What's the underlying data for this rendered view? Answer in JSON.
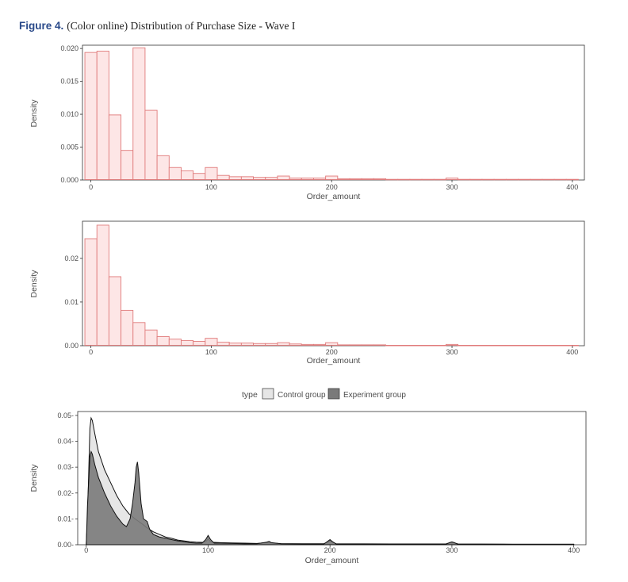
{
  "caption": {
    "label": "Figure 4.",
    "text": "(Color online) Distribution of Purchase Size - Wave I"
  },
  "chart_data": [
    {
      "type": "histogram",
      "xlabel": "Order_amount",
      "ylabel": "Density",
      "xlim": [
        -7,
        410
      ],
      "ylim": [
        0,
        0.0205
      ],
      "x_ticks": [
        0,
        100,
        200,
        300,
        400
      ],
      "y_ticks": [
        0.0,
        0.005,
        0.01,
        0.015,
        0.02
      ],
      "y_tick_labels": [
        "0.000",
        "0.005",
        "0.010",
        "0.015",
        "0.020"
      ],
      "bin_width": 10,
      "bin_start": -5,
      "values": [
        0.0194,
        0.0196,
        0.0099,
        0.0045,
        0.0201,
        0.0106,
        0.0037,
        0.0019,
        0.0014,
        0.001,
        0.0019,
        0.0007,
        0.0005,
        0.0005,
        0.0004,
        0.0004,
        0.0006,
        0.0003,
        0.0003,
        0.0003,
        0.0006,
        0.0002,
        0.0002,
        0.0002,
        0.0002,
        0.0001,
        0.0001,
        0.0001,
        0.0001,
        0.0001,
        0.0003,
        0.0001,
        0.0001,
        0.0001,
        0.0001,
        0.0001,
        0.0001,
        0.0001,
        0.0001,
        0.0001,
        0.0001
      ],
      "fill": "#fde6e6",
      "stroke": "#e07b7b",
      "grid": false
    },
    {
      "type": "histogram",
      "xlabel": "Order_amount",
      "ylabel": "Density",
      "xlim": [
        -7,
        410
      ],
      "ylim": [
        0,
        0.0285
      ],
      "x_ticks": [
        0,
        100,
        200,
        300,
        400
      ],
      "y_ticks": [
        0.0,
        0.01,
        0.02
      ],
      "y_tick_labels": [
        "0.00",
        "0.01",
        "0.02"
      ],
      "bin_width": 10,
      "bin_start": -5,
      "values": [
        0.0245,
        0.0276,
        0.0158,
        0.0081,
        0.0053,
        0.0036,
        0.0021,
        0.0015,
        0.0012,
        0.001,
        0.0017,
        0.0008,
        0.0006,
        0.0006,
        0.0005,
        0.0005,
        0.0007,
        0.0004,
        0.0003,
        0.0003,
        0.0007,
        0.0002,
        0.0002,
        0.0002,
        0.0002,
        0.0001,
        0.0001,
        0.0001,
        0.0001,
        0.0001,
        0.0003,
        0.0001,
        0.0001,
        0.0001,
        0.0001,
        0.0001,
        0.0001,
        0.0001,
        0.0001,
        0.0001,
        0.0001
      ],
      "fill": "#fde6e6",
      "stroke": "#e07b7b",
      "grid": false
    },
    {
      "type": "area",
      "xlabel": "Order_amount",
      "ylabel": "Density",
      "xlim": [
        -7,
        410
      ],
      "ylim": [
        0,
        0.0515
      ],
      "x_ticks": [
        0,
        100,
        200,
        300,
        400
      ],
      "y_ticks": [
        0.0,
        0.01,
        0.02,
        0.03,
        0.04,
        0.05
      ],
      "y_tick_labels": [
        "0.00-",
        "0.01-",
        "0.02-",
        "0.03-",
        "0.04-",
        "0.05-"
      ],
      "legend": {
        "title": "type",
        "position": "top"
      },
      "grid": false,
      "series": [
        {
          "name": "Control group",
          "fill": "#e6e6e6",
          "points": [
            [
              0,
              0.0
            ],
            [
              1,
              0.01
            ],
            [
              3,
              0.045
            ],
            [
              4,
              0.049
            ],
            [
              5,
              0.048
            ],
            [
              7,
              0.043
            ],
            [
              10,
              0.036
            ],
            [
              15,
              0.029
            ],
            [
              20,
              0.024
            ],
            [
              25,
              0.019
            ],
            [
              30,
              0.015
            ],
            [
              35,
              0.012
            ],
            [
              40,
              0.01
            ],
            [
              43,
              0.009
            ],
            [
              46,
              0.008
            ],
            [
              50,
              0.0065
            ],
            [
              55,
              0.005
            ],
            [
              60,
              0.004
            ],
            [
              65,
              0.003
            ],
            [
              70,
              0.0025
            ],
            [
              75,
              0.0018
            ],
            [
              80,
              0.0015
            ],
            [
              85,
              0.0012
            ],
            [
              90,
              0.001
            ],
            [
              95,
              0.0009
            ],
            [
              98,
              0.0012
            ],
            [
              100,
              0.0022
            ],
            [
              102,
              0.0012
            ],
            [
              105,
              0.0009
            ],
            [
              110,
              0.0008
            ],
            [
              120,
              0.0007
            ],
            [
              130,
              0.0006
            ],
            [
              140,
              0.0005
            ],
            [
              148,
              0.0008
            ],
            [
              150,
              0.001
            ],
            [
              152,
              0.0007
            ],
            [
              160,
              0.0004
            ],
            [
              180,
              0.0004
            ],
            [
              195,
              0.0004
            ],
            [
              198,
              0.001
            ],
            [
              200,
              0.0016
            ],
            [
              202,
              0.001
            ],
            [
              205,
              0.0004
            ],
            [
              250,
              0.0003
            ],
            [
              295,
              0.0003
            ],
            [
              298,
              0.0007
            ],
            [
              300,
              0.0009
            ],
            [
              302,
              0.0007
            ],
            [
              305,
              0.0003
            ],
            [
              350,
              0.0002
            ],
            [
              400,
              0.0002
            ]
          ]
        },
        {
          "name": "Experiment group",
          "fill": "#7a7a7a",
          "points": [
            [
              0,
              0.0
            ],
            [
              1,
              0.015
            ],
            [
              3,
              0.034
            ],
            [
              4,
              0.036
            ],
            [
              5,
              0.035
            ],
            [
              7,
              0.031
            ],
            [
              10,
              0.026
            ],
            [
              15,
              0.02
            ],
            [
              20,
              0.015
            ],
            [
              25,
              0.011
            ],
            [
              30,
              0.008
            ],
            [
              33,
              0.007
            ],
            [
              36,
              0.01
            ],
            [
              38,
              0.016
            ],
            [
              40,
              0.024
            ],
            [
              41,
              0.03
            ],
            [
              42,
              0.032
            ],
            [
              43,
              0.028
            ],
            [
              45,
              0.016
            ],
            [
              47,
              0.01
            ],
            [
              50,
              0.009
            ],
            [
              52,
              0.006
            ],
            [
              55,
              0.004
            ],
            [
              60,
              0.003
            ],
            [
              65,
              0.0025
            ],
            [
              70,
              0.002
            ],
            [
              75,
              0.0015
            ],
            [
              80,
              0.0012
            ],
            [
              85,
              0.0008
            ],
            [
              90,
              0.0006
            ],
            [
              95,
              0.0006
            ],
            [
              98,
              0.002
            ],
            [
              100,
              0.0036
            ],
            [
              102,
              0.002
            ],
            [
              105,
              0.0006
            ],
            [
              110,
              0.0006
            ],
            [
              120,
              0.0005
            ],
            [
              130,
              0.0004
            ],
            [
              140,
              0.0004
            ],
            [
              148,
              0.001
            ],
            [
              150,
              0.0013
            ],
            [
              152,
              0.0008
            ],
            [
              160,
              0.0004
            ],
            [
              180,
              0.0003
            ],
            [
              195,
              0.0003
            ],
            [
              198,
              0.0013
            ],
            [
              200,
              0.002
            ],
            [
              202,
              0.0012
            ],
            [
              205,
              0.0003
            ],
            [
              250,
              0.0002
            ],
            [
              295,
              0.0002
            ],
            [
              298,
              0.0008
            ],
            [
              300,
              0.0011
            ],
            [
              302,
              0.0008
            ],
            [
              305,
              0.0002
            ],
            [
              350,
              0.0002
            ],
            [
              400,
              0.0002
            ]
          ]
        }
      ]
    }
  ]
}
